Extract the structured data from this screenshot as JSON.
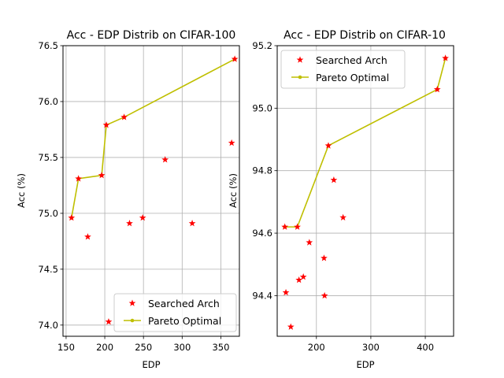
{
  "chart_data": [
    {
      "type": "scatter",
      "title": "Acc - EDP Distrib on CIFAR-100",
      "xlabel": "EDP",
      "ylabel": "Acc (%)",
      "xlim": [
        146,
        374
      ],
      "ylim": [
        73.9,
        76.5
      ],
      "xticks": [
        150,
        200,
        250,
        300,
        350
      ],
      "yticks": [
        74.0,
        74.5,
        75.0,
        75.5,
        76.0,
        76.5
      ],
      "ytick_labels": [
        "74.0",
        "74.5",
        "75.0",
        "75.5",
        "76.0",
        "76.5"
      ],
      "grid": true,
      "legend_position": "lower right",
      "series": [
        {
          "name": "Searched Arch",
          "kind": "scatter",
          "marker": "star",
          "color": "#ff0000",
          "points": [
            [
              157,
              74.96
            ],
            [
              166,
              75.31
            ],
            [
              178,
              74.79
            ],
            [
              196,
              75.34
            ],
            [
              202,
              75.79
            ],
            [
              205,
              74.03
            ],
            [
              225,
              75.86
            ],
            [
              232,
              74.91
            ],
            [
              249,
              74.96
            ],
            [
              278,
              75.48
            ],
            [
              313,
              74.91
            ],
            [
              364,
              75.63
            ],
            [
              368,
              76.38
            ]
          ]
        },
        {
          "name": "Pareto Optimal",
          "kind": "line",
          "marker": "dot",
          "color": "#bfbf00",
          "points": [
            [
              157,
              74.96
            ],
            [
              166,
              75.31
            ],
            [
              196,
              75.34
            ],
            [
              202,
              75.79
            ],
            [
              225,
              75.86
            ],
            [
              368,
              76.38
            ]
          ]
        }
      ]
    },
    {
      "type": "scatter",
      "title": "Acc - EDP Distrib on CIFAR-10",
      "xlabel": "EDP",
      "ylabel": "Acc (%)",
      "xlim": [
        128,
        452
      ],
      "ylim": [
        94.27,
        95.2
      ],
      "xticks": [
        200,
        300,
        400
      ],
      "yticks": [
        94.4,
        94.6,
        94.8,
        95.0,
        95.2
      ],
      "ytick_labels": [
        "94.4",
        "94.6",
        "94.8",
        "95.0",
        "95.2"
      ],
      "grid": true,
      "legend_position": "upper left",
      "series": [
        {
          "name": "Searched Arch",
          "kind": "scatter",
          "marker": "star",
          "color": "#ff0000",
          "points": [
            [
              142,
              94.62
            ],
            [
              144,
              94.41
            ],
            [
              153,
              94.3
            ],
            [
              165,
              94.62
            ],
            [
              168,
              94.45
            ],
            [
              176,
              94.46
            ],
            [
              187,
              94.57
            ],
            [
              214,
              94.52
            ],
            [
              215,
              94.4
            ],
            [
              222,
              94.88
            ],
            [
              232,
              94.77
            ],
            [
              249,
              94.65
            ],
            [
              422,
              95.06
            ],
            [
              437,
              95.16
            ]
          ]
        },
        {
          "name": "Pareto Optimal",
          "kind": "line",
          "marker": "dot",
          "color": "#bfbf00",
          "points": [
            [
              142,
              94.62
            ],
            [
              165,
              94.62
            ],
            [
              222,
              94.88
            ],
            [
              422,
              95.06
            ],
            [
              437,
              95.16
            ]
          ]
        }
      ]
    }
  ]
}
